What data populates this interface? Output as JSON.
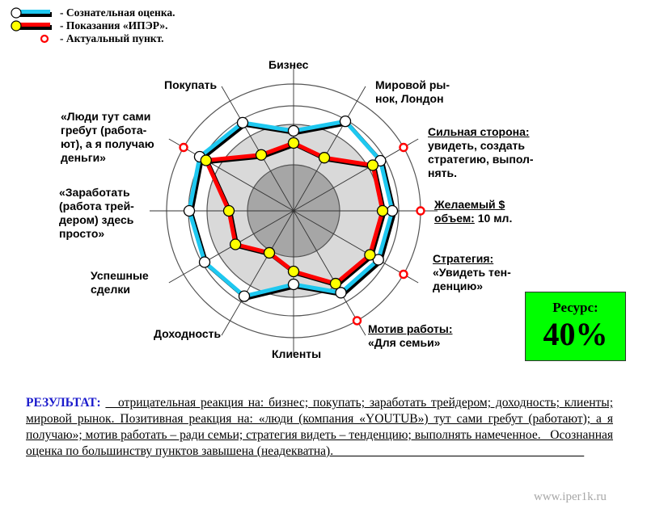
{
  "legend": {
    "items": [
      {
        "label": "- Сознательная оценка.",
        "marker": "white-circle",
        "line_color": "#1ec8f0"
      },
      {
        "label": "- Показания «ИПЭР».",
        "marker": "yellow-circle",
        "line_color": "#ff0000"
      },
      {
        "label": "- Актуальный пункт.",
        "marker": "red-ring",
        "line_color": "#ff0000"
      }
    ]
  },
  "axis_labels": {
    "a0": "Бизнес",
    "a1_l1": "Мировой ры-",
    "a1_l2": "нок, Лондон",
    "a2_head": "Сильная сторона:",
    "a2_l2": "увидеть, создать",
    "a2_l3": "стратегию, выпол-",
    "a2_l4": "нять.",
    "a3_head1": "Желаемый $",
    "a3_head2": "объем:",
    "a3_tail": " 10 мл.",
    "a4_head": "Стратегия:",
    "a4_l2": "«Увидеть тен-",
    "a4_l3": "денцию»",
    "a5_head": "Мотив работы:",
    "a5_l2": "«Для семьи»",
    "a6": "Клиенты",
    "a7": "Доходность",
    "a8_l1": "Успешные",
    "a8_l2": "сделки",
    "a9_l1": "«Заработать",
    "a9_l2": "(работа трей-",
    "a9_l3": "дером) здесь",
    "a9_l4": "просто»",
    "a10_l1": "«Люди тут сами",
    "a10_l2": "гребут (работа-",
    "a10_l3": "ют), а я получаю",
    "a10_l4": "деньги»",
    "a11": "Покупать"
  },
  "resource": {
    "label": "Ресурс:",
    "value": "40%"
  },
  "result": {
    "heading": "РЕЗУЛЬТАТ:",
    "text": "__отрицательная реакция на: бизнес; покупать; заработать трейдером; доходность; клиенты; мировой рынок. Позитивная реакция на: «люди (компания «YOUTUB») тут сами гребут (работают); а я получаю»; мотив работать – ради семьи; стратегия видеть – тенденцию; выполнять намеченное._ Осознанная оценка по большинству пунктов завышена (неадекватна).________________________________________"
  },
  "watermark": "www.iper1k.ru",
  "colors": {
    "conscious_line": "#1ec8f0",
    "iper_line": "#ff0000",
    "iper_marker": "#ffff00",
    "actual_marker": "#ff0000",
    "resource_bg": "#00ff00",
    "result_heading": "#1a1acc",
    "inner_disk": "#a6a6a6",
    "mid_disk": "#d9d9d9"
  },
  "chart_data": {
    "type": "radar",
    "title": "",
    "center": [
      363,
      261
    ],
    "rings_radius_px": [
      57,
      107,
      130,
      157
    ],
    "categories": [
      "Бизнес",
      "Мировой рынок, Лондон",
      "Сильная сторона: увидеть, создать стратегию, выполнять",
      "Желаемый $ объем: 10 мл.",
      "Стратегия: «Увидеть тенденцию»",
      "Мотив работы: «Для семьи»",
      "Клиенты",
      "Доходность",
      "Успешные сделки",
      "«Заработать (работа трейдером) здесь просто»",
      "«Люди тут сами гребут (работают), а я получаю деньги»",
      "Покупать"
    ],
    "series": [
      {
        "name": "Сознательная оценка",
        "values_radius_px": [
          99,
          128,
          124,
          122,
          121,
          117,
          91,
          122,
          127,
          129,
          134,
          126
        ]
      },
      {
        "name": "Показания «ИПЭР»",
        "values_radius_px": [
          84,
          76,
          113,
          110,
          109,
          104,
          75,
          60,
          83,
          80,
          125,
          80
        ]
      },
      {
        "name": "Актуальный пункт",
        "axes_marked": [
          2,
          3,
          4,
          5,
          10
        ],
        "radius_px": 157
      }
    ],
    "legend_position": "top-left",
    "grid": true
  }
}
